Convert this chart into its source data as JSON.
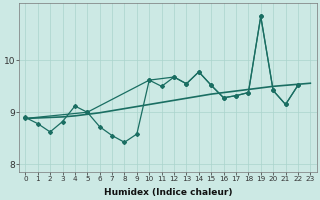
{
  "xlabel": "Humidex (Indice chaleur)",
  "background_color": "#cce9e4",
  "grid_color": "#aad4cc",
  "line_color": "#1a6e62",
  "x_values": [
    0,
    1,
    2,
    3,
    4,
    5,
    6,
    7,
    8,
    9,
    10,
    11,
    12,
    13,
    14,
    15,
    16,
    17,
    18,
    19,
    20,
    21,
    22,
    23
  ],
  "series_zigzag": [
    8.9,
    8.78,
    8.62,
    8.82,
    9.12,
    9.0,
    8.72,
    8.55,
    8.42,
    8.58,
    9.62,
    9.5,
    9.68,
    9.55,
    9.78,
    9.52,
    9.28,
    9.32,
    9.38,
    10.85,
    9.42,
    9.15,
    9.52,
    null
  ],
  "series_upper": [
    8.88,
    null,
    null,
    null,
    null,
    9.0,
    null,
    null,
    null,
    null,
    9.62,
    null,
    9.68,
    9.55,
    9.78,
    9.52,
    9.28,
    9.32,
    9.38,
    10.85,
    9.42,
    9.15,
    9.52,
    null
  ],
  "trend_line": [
    8.88,
    8.89,
    8.9,
    8.91,
    8.93,
    8.96,
    8.99,
    9.03,
    9.07,
    9.11,
    9.15,
    9.19,
    9.23,
    9.27,
    9.31,
    9.35,
    9.38,
    9.41,
    9.44,
    9.47,
    9.5,
    9.52,
    9.54,
    9.56
  ],
  "ylim": [
    7.85,
    11.1
  ],
  "yticks": [
    8,
    9,
    10
  ],
  "xticks": [
    0,
    1,
    2,
    3,
    4,
    5,
    6,
    7,
    8,
    9,
    10,
    11,
    12,
    13,
    14,
    15,
    16,
    17,
    18,
    19,
    20,
    21,
    22,
    23
  ]
}
